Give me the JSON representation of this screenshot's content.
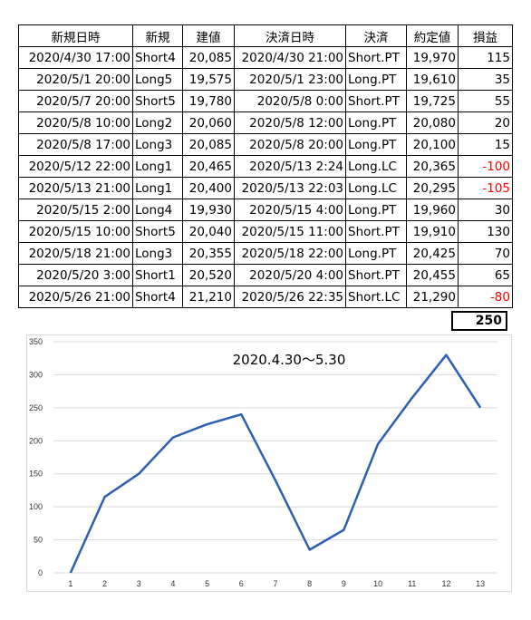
{
  "table": {
    "headers": [
      "新規日時",
      "新規",
      "建値",
      "決済日時",
      "決済",
      "約定値",
      "損益"
    ],
    "rows": [
      [
        "2020/4/30 17:00",
        "Short4",
        "20,085",
        "2020/4/30 21:00",
        "Short.PT",
        "19,970",
        "115"
      ],
      [
        "2020/5/1 20:00",
        "Long5",
        "19,575",
        "2020/5/1 23:00",
        "Long.PT",
        "19,610",
        "35"
      ],
      [
        "2020/5/7 20:00",
        "Short5",
        "19,780",
        "2020/5/8 0:00",
        "Short.PT",
        "19,725",
        "55"
      ],
      [
        "2020/5/8 10:00",
        "Long2",
        "20,060",
        "2020/5/8 12:00",
        "Long.PT",
        "20,080",
        "20"
      ],
      [
        "2020/5/8 17:00",
        "Long3",
        "20,085",
        "2020/5/8 20:00",
        "Long.PT",
        "20,100",
        "15"
      ],
      [
        "2020/5/12 22:00",
        "Long1",
        "20,465",
        "2020/5/13 2:24",
        "Long.LC",
        "20,365",
        "-100"
      ],
      [
        "2020/5/13 21:00",
        "Long1",
        "20,400",
        "2020/5/13 22:03",
        "Long.LC",
        "20,295",
        "-105"
      ],
      [
        "2020/5/15 2:00",
        "Long4",
        "19,930",
        "2020/5/15 4:00",
        "Long.PT",
        "19,960",
        "30"
      ],
      [
        "2020/5/15 10:00",
        "Short5",
        "20,040",
        "2020/5/15 11:00",
        "Short.PT",
        "19,910",
        "130"
      ],
      [
        "2020/5/18 21:00",
        "Long3",
        "20,355",
        "2020/5/18 22:00",
        "Long.PT",
        "20,425",
        "70"
      ],
      [
        "2020/5/20 3:00",
        "Short1",
        "20,520",
        "2020/5/20 4:00",
        "Short.PT",
        "20,455",
        "65"
      ],
      [
        "2020/5/26 21:00",
        "Short4",
        "21,210",
        "2020/5/26 22:35",
        "Short.LC",
        "21,290",
        "-80"
      ]
    ],
    "total": "250"
  },
  "colors": {
    "line": "#2d5fb4",
    "negative": "#ff0000",
    "grid": "#d9d9d9",
    "border": "#000000"
  },
  "chart_data": {
    "type": "line",
    "title": "2020.4.30～5.30",
    "x": [
      1,
      2,
      3,
      4,
      5,
      6,
      7,
      8,
      9,
      10,
      11,
      12,
      13
    ],
    "series": [
      {
        "values": [
          0,
          115,
          150,
          205,
          225,
          240,
          140,
          35,
          65,
          195,
          265,
          330,
          250
        ]
      }
    ],
    "ylim": [
      0,
      350
    ],
    "yticks": [
      0,
      50,
      100,
      150,
      200,
      250,
      300,
      350
    ],
    "xlabel": "",
    "ylabel": "",
    "grid": true,
    "legend": "none"
  }
}
